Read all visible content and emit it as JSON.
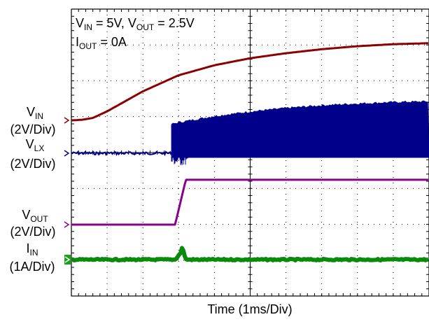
{
  "chart_data": {
    "type": "line",
    "conditions": {
      "line1": {
        "v": "V",
        "v_sub": "IN",
        "eq": " = 5V, ",
        "v2": "V",
        "v2_sub": "OUT",
        "eq2": " = 2.5V"
      },
      "line2": {
        "i": "I",
        "i_sub": "OUT",
        "eq": " = 0A"
      }
    },
    "xlabel": "Time (1ms/Div)",
    "x_divisions": 10,
    "y_divisions": 8,
    "grid": true,
    "x_unit": "ms",
    "series": [
      {
        "key": "vin",
        "name": "V",
        "name_sub": "IN",
        "scale": "(2V/Div)",
        "color": "#8b0000",
        "marker_color": "#8b0000",
        "baseline_div": 1.85,
        "x": [
          0,
          0.3,
          0.6,
          1.0,
          1.5,
          2.0,
          3.0,
          4.0,
          5.0,
          6.0,
          7.0,
          8.0,
          9.0,
          10.0
        ],
        "y": [
          0,
          0.03,
          0.12,
          0.45,
          0.95,
          1.45,
          2.25,
          2.75,
          3.1,
          3.35,
          3.55,
          3.7,
          3.8,
          3.85
        ]
      },
      {
        "key": "vlx",
        "name": "V",
        "name_sub": "LX",
        "scale": "(2V/Div)",
        "color": "#00008b",
        "marker_color": "#00008b",
        "baseline_div": 1.0,
        "switch_start_ms": 2.8,
        "envelope_x": [
          2.8,
          3.0,
          4.0,
          5.0,
          6.0,
          7.0,
          8.0,
          9.0,
          10.0
        ],
        "envelope_y": [
          1.55,
          1.65,
          2.0,
          2.25,
          2.45,
          2.6,
          2.7,
          2.78,
          2.82
        ]
      },
      {
        "key": "vout",
        "name": "V",
        "name_sub": "OUT",
        "scale": "(2V/Div)",
        "color": "#8b008b",
        "marker_color": "#8b008b",
        "baseline_div": 1.0,
        "x": [
          0,
          2.9,
          3.2,
          10.0
        ],
        "y": [
          0,
          0,
          1.25,
          1.25
        ]
      },
      {
        "key": "iin",
        "name": "I",
        "name_sub": "IN",
        "scale": "(1A/Div)",
        "color": "#0a8a0a",
        "marker_color": "#1aa01a",
        "baseline_div": 1.0,
        "x": [
          0,
          2.9,
          3.05,
          3.1,
          3.2,
          10.0
        ],
        "y": [
          0,
          0,
          0.18,
          0.35,
          0.0,
          0
        ]
      }
    ]
  }
}
